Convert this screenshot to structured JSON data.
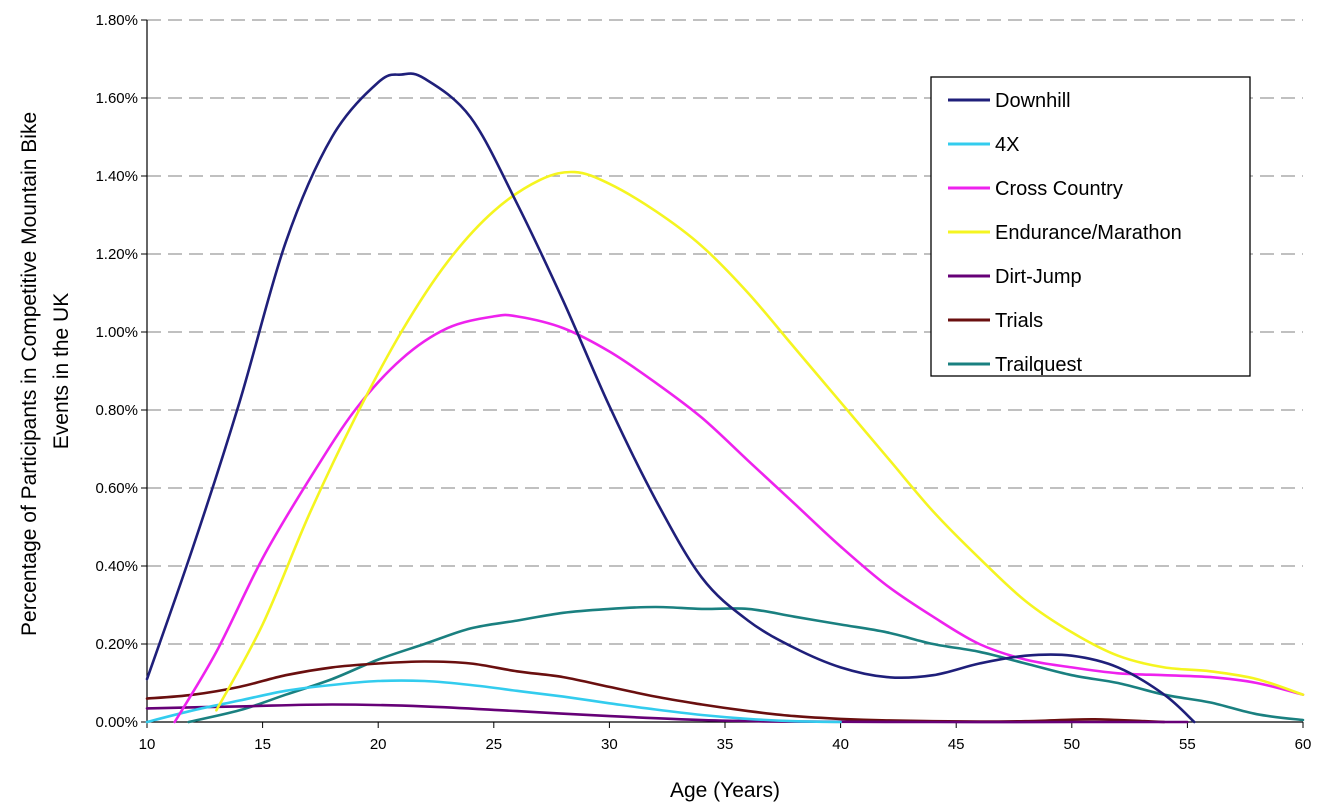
{
  "chart_data": {
    "type": "line",
    "title": "",
    "xlabel": "Age (Years)",
    "ylabel_lines": [
      "Percentage of Participants in Competitive Mountain Bike",
      "Events in the UK"
    ],
    "xlim": [
      10,
      60
    ],
    "ylim": [
      0,
      0.018
    ],
    "x_ticks": [
      "10",
      "15",
      "20",
      "25",
      "30",
      "35",
      "40",
      "45",
      "50",
      "55",
      "60"
    ],
    "y_ticks": [
      "0.00%",
      "0.20%",
      "0.40%",
      "0.60%",
      "0.80%",
      "1.00%",
      "1.20%",
      "1.40%",
      "1.60%",
      "1.80%"
    ],
    "grid": "horizontal dashed",
    "legend_position": "top-right",
    "series": [
      {
        "name": "Downhill",
        "color": "#1f1f7a",
        "points": [
          [
            10,
            0.0011
          ],
          [
            12,
            0.0045
          ],
          [
            14,
            0.0082
          ],
          [
            16,
            0.0123
          ],
          [
            18,
            0.015
          ],
          [
            20,
            0.0164
          ],
          [
            21,
            0.0166
          ],
          [
            22,
            0.0165
          ],
          [
            24,
            0.0155
          ],
          [
            26,
            0.0133
          ],
          [
            28,
            0.0108
          ],
          [
            30,
            0.0081
          ],
          [
            32,
            0.0057
          ],
          [
            34,
            0.0037
          ],
          [
            36,
            0.0026
          ],
          [
            38,
            0.0019
          ],
          [
            40,
            0.0014
          ],
          [
            42,
            0.00115
          ],
          [
            44,
            0.0012
          ],
          [
            46,
            0.0015
          ],
          [
            48,
            0.0017
          ],
          [
            50,
            0.0017
          ],
          [
            52,
            0.0014
          ],
          [
            54,
            0.0007
          ],
          [
            55.3,
            0
          ]
        ]
      },
      {
        "name": "4X",
        "color": "#33ccee",
        "points": [
          [
            10,
            0
          ],
          [
            12,
            0.0003
          ],
          [
            14,
            0.00055
          ],
          [
            16,
            0.0008
          ],
          [
            18,
            0.00095
          ],
          [
            20,
            0.00105
          ],
          [
            22,
            0.00105
          ],
          [
            24,
            0.00095
          ],
          [
            26,
            0.0008
          ],
          [
            28,
            0.00065
          ],
          [
            30,
            0.00048
          ],
          [
            32,
            0.00032
          ],
          [
            34,
            0.00018
          ],
          [
            36,
            8e-05
          ],
          [
            38,
            2e-05
          ],
          [
            40,
            0
          ]
        ]
      },
      {
        "name": "Cross Country",
        "color": "#ee22ee",
        "points": [
          [
            11.2,
            0
          ],
          [
            13,
            0.0018
          ],
          [
            15,
            0.0042
          ],
          [
            17,
            0.0062
          ],
          [
            19,
            0.008
          ],
          [
            21,
            0.0093
          ],
          [
            23,
            0.0101
          ],
          [
            25,
            0.0104
          ],
          [
            26,
            0.0104
          ],
          [
            28,
            0.0101
          ],
          [
            30,
            0.0095
          ],
          [
            32,
            0.0087
          ],
          [
            34,
            0.0078
          ],
          [
            36,
            0.0067
          ],
          [
            38,
            0.0056
          ],
          [
            40,
            0.0045
          ],
          [
            42,
            0.0035
          ],
          [
            44,
            0.0027
          ],
          [
            46,
            0.002
          ],
          [
            48,
            0.0016
          ],
          [
            50,
            0.0014
          ],
          [
            52,
            0.00125
          ],
          [
            54,
            0.0012
          ],
          [
            56,
            0.00115
          ],
          [
            58,
            0.001
          ],
          [
            60,
            0.0007
          ]
        ]
      },
      {
        "name": "Endurance/Marathon",
        "color": "#f5f520",
        "points": [
          [
            13,
            0.0003
          ],
          [
            15,
            0.0025
          ],
          [
            17,
            0.0053
          ],
          [
            19,
            0.0078
          ],
          [
            21,
            0.01
          ],
          [
            23,
            0.0118
          ],
          [
            25,
            0.0131
          ],
          [
            27,
            0.0139
          ],
          [
            28.5,
            0.0141
          ],
          [
            30,
            0.0138
          ],
          [
            32,
            0.0131
          ],
          [
            34,
            0.0122
          ],
          [
            36,
            0.011
          ],
          [
            38,
            0.0096
          ],
          [
            40,
            0.0082
          ],
          [
            42,
            0.0068
          ],
          [
            44,
            0.0054
          ],
          [
            46,
            0.0042
          ],
          [
            48,
            0.0031
          ],
          [
            50,
            0.0023
          ],
          [
            52,
            0.0017
          ],
          [
            54,
            0.0014
          ],
          [
            56,
            0.0013
          ],
          [
            58,
            0.0011
          ],
          [
            60,
            0.0007
          ]
        ]
      },
      {
        "name": "Dirt-Jump",
        "color": "#660077",
        "points": [
          [
            10,
            0.00035
          ],
          [
            14,
            0.0004
          ],
          [
            18,
            0.00045
          ],
          [
            22,
            0.0004
          ],
          [
            26,
            0.00028
          ],
          [
            30,
            0.00015
          ],
          [
            34,
            5e-05
          ],
          [
            38,
            1e-05
          ],
          [
            44,
            0
          ],
          [
            50,
            0
          ],
          [
            55,
            0
          ]
        ]
      },
      {
        "name": "Trials",
        "color": "#6a0f0f",
        "points": [
          [
            10,
            0.0006
          ],
          [
            12,
            0.0007
          ],
          [
            14,
            0.0009
          ],
          [
            16,
            0.0012
          ],
          [
            18,
            0.0014
          ],
          [
            20,
            0.0015
          ],
          [
            22,
            0.00155
          ],
          [
            24,
            0.0015
          ],
          [
            26,
            0.0013
          ],
          [
            28,
            0.00115
          ],
          [
            30,
            0.0009
          ],
          [
            32,
            0.00065
          ],
          [
            34,
            0.00045
          ],
          [
            36,
            0.00028
          ],
          [
            38,
            0.00015
          ],
          [
            40,
            8e-05
          ],
          [
            42,
            4e-05
          ],
          [
            44,
            2e-05
          ],
          [
            46,
            1e-05
          ],
          [
            48,
            2e-05
          ],
          [
            50,
            6e-05
          ],
          [
            51,
            7e-05
          ],
          [
            52,
            5e-05
          ],
          [
            54,
            0
          ]
        ]
      },
      {
        "name": "Trailquest",
        "color": "#1a8080",
        "points": [
          [
            11.8,
            0
          ],
          [
            14,
            0.0003
          ],
          [
            16,
            0.0007
          ],
          [
            18,
            0.0011
          ],
          [
            20,
            0.0016
          ],
          [
            22,
            0.002
          ],
          [
            24,
            0.0024
          ],
          [
            26,
            0.0026
          ],
          [
            28,
            0.0028
          ],
          [
            30,
            0.0029
          ],
          [
            32,
            0.00295
          ],
          [
            34,
            0.0029
          ],
          [
            36,
            0.0029
          ],
          [
            38,
            0.0027
          ],
          [
            40,
            0.0025
          ],
          [
            42,
            0.0023
          ],
          [
            44,
            0.002
          ],
          [
            46,
            0.0018
          ],
          [
            48,
            0.0015
          ],
          [
            50,
            0.0012
          ],
          [
            52,
            0.001
          ],
          [
            54,
            0.0007
          ],
          [
            56,
            0.0005
          ],
          [
            58,
            0.0002
          ],
          [
            60,
            5e-05
          ]
        ]
      }
    ]
  }
}
